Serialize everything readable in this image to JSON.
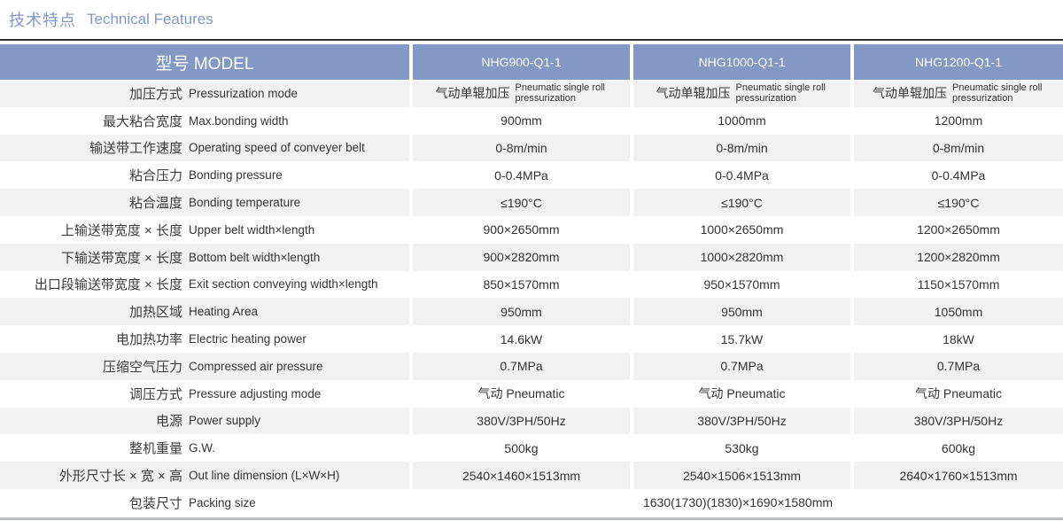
{
  "title": {
    "zh": "技术特点",
    "en": "Technical Features"
  },
  "colors": {
    "header_bg": "#8398c4",
    "shaded_row_bg": "#f1f1f1",
    "title_text": "#7f98c9",
    "divider": "#303030",
    "bottom_bar": "#b9bdc2"
  },
  "table": {
    "header": {
      "model_label": "型号 MODEL",
      "models": [
        "NHG900-Q1-1",
        "NHG1000-Q1-1",
        "NHG1200-Q1-1"
      ]
    },
    "rows": [
      {
        "zh": "加压方式",
        "en": "Pressurization mode",
        "values": [
          {
            "zh": "气动单辊加压",
            "en": "Pneumatic single roll pressurization"
          },
          {
            "zh": "气动单辊加压",
            "en": "Pneumatic single roll pressurization"
          },
          {
            "zh": "气动单辊加压",
            "en": "Pneumatic single roll pressurization"
          }
        ]
      },
      {
        "zh": "最大粘合宽度",
        "en": "Max.bonding width",
        "values": [
          "900mm",
          "1000mm",
          "1200mm"
        ]
      },
      {
        "zh": "输送带工作速度",
        "en": "Operating speed of conveyer belt",
        "values": [
          "0-8m/min",
          "0-8m/min",
          "0-8m/min"
        ]
      },
      {
        "zh": "粘合压力",
        "en": "Bonding pressure",
        "values": [
          "0-0.4MPa",
          "0-0.4MPa",
          "0-0.4MPa"
        ]
      },
      {
        "zh": "粘合温度",
        "en": "Bonding temperature",
        "values": [
          "≤190°C",
          "≤190°C",
          "≤190°C"
        ]
      },
      {
        "zh": "上输送带宽度 × 长度",
        "en": "Upper belt width×length",
        "values": [
          "900×2650mm",
          "1000×2650mm",
          "1200×2650mm"
        ]
      },
      {
        "zh": "下输送带宽度 × 长度",
        "en": "Bottom belt width×length",
        "values": [
          "900×2820mm",
          "1000×2820mm",
          "1200×2820mm"
        ]
      },
      {
        "zh": "出口段输送带宽度 × 长度",
        "en": "Exit section conveying width×length",
        "values": [
          "850×1570mm",
          "950×1570mm",
          "1150×1570mm"
        ]
      },
      {
        "zh": "加热区域",
        "en": "Heating Area",
        "values": [
          "950mm",
          "950mm",
          "1050mm"
        ]
      },
      {
        "zh": "电加热功率",
        "en": "Electric heating power",
        "values": [
          "14.6kW",
          "15.7kW",
          "18kW"
        ]
      },
      {
        "zh": "压缩空气压力",
        "en": "Compressed air pressure",
        "values": [
          "0.7MPa",
          "0.7MPa",
          "0.7MPa"
        ]
      },
      {
        "zh": "调压方式",
        "en": "Pressure adjusting mode",
        "values": [
          "气动 Pneumatic",
          "气动 Pneumatic",
          "气动 Pneumatic"
        ]
      },
      {
        "zh": "电源",
        "en": "Power supply",
        "values": [
          "380V/3PH/50Hz",
          "380V/3PH/50Hz",
          "380V/3PH/50Hz"
        ]
      },
      {
        "zh": "整机重量",
        "en": "G.W.",
        "values": [
          "500kg",
          "530kg",
          "600kg"
        ]
      },
      {
        "zh": "外形尺寸长 × 宽 × 高",
        "en": "Out line dimension (L×W×H)",
        "values": [
          "2540×1460×1513mm",
          "2540×1506×1513mm",
          "2640×1760×1513mm"
        ]
      },
      {
        "zh": "包装尺寸",
        "en": "Packing size",
        "merged": true,
        "values": [
          "1630(1730)(1830)×1690×1580mm"
        ]
      }
    ]
  }
}
